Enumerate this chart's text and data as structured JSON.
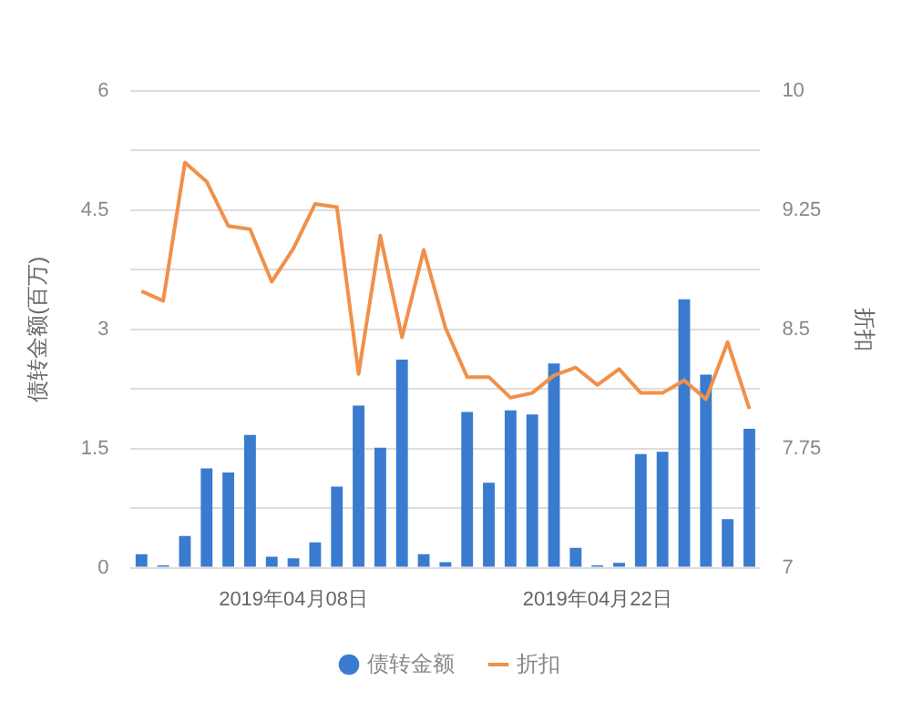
{
  "chart_data": {
    "type": "bar",
    "ylabel": "债转金额(百万)",
    "y2label": "折扣",
    "categories": [
      null,
      null,
      null,
      null,
      null,
      null,
      null,
      "2019年04月08日",
      null,
      null,
      null,
      null,
      null,
      null,
      null,
      null,
      null,
      null,
      null,
      null,
      null,
      "2019年04月22日",
      null,
      null,
      null,
      null,
      null,
      null,
      null
    ],
    "series": [
      {
        "name": "债转金额",
        "color": "#3a7bd0",
        "values": [
          0.17,
          0.03,
          0.4,
          1.25,
          1.2,
          1.67,
          0.14,
          0.12,
          0.32,
          1.02,
          2.04,
          1.51,
          2.62,
          0.17,
          0.07,
          1.96,
          1.07,
          1.98,
          1.93,
          2.57,
          0.25,
          0.03,
          0.06,
          1.43,
          1.46,
          3.38,
          2.43,
          0.61,
          1.75
        ]
      },
      {
        "name": "折扣",
        "type": "line",
        "axis": "y2",
        "color": "#f0904a",
        "values": [
          8.74,
          8.68,
          9.55,
          9.43,
          9.15,
          9.13,
          8.8,
          9.01,
          9.29,
          9.27,
          8.22,
          9.09,
          8.45,
          9.0,
          8.51,
          8.2,
          8.2,
          8.07,
          8.1,
          8.21,
          8.26,
          8.15,
          8.25,
          8.1,
          8.1,
          8.18,
          8.06,
          8.42,
          8.0
        ]
      }
    ],
    "ylim": [
      0,
      6
    ],
    "yticks": [
      0,
      {
        "value": 0.75,
        "label": null
      },
      1.5,
      {
        "value": 2.25,
        "label": null
      },
      3,
      {
        "value": 3.75,
        "label": null
      },
      4.5,
      {
        "value": 5.25,
        "label": null
      },
      6
    ],
    "y2lim": [
      7,
      10
    ],
    "y2ticks": [
      7,
      7.75,
      8.5,
      9.25,
      10
    ],
    "grid": "y",
    "legend": "bottom",
    "marker": "none"
  }
}
